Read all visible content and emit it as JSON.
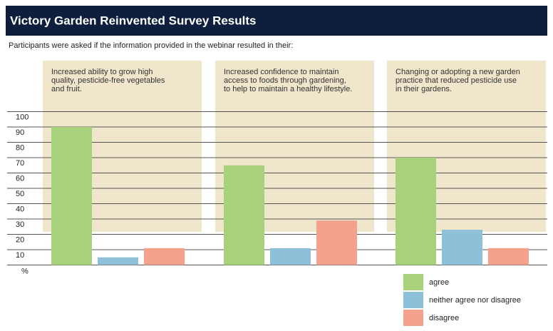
{
  "chart_data": {
    "type": "bar",
    "title": "Victory Garden Reinvented Survey Results",
    "subtitle": "Participants were asked if the information provided in the webinar resulted in their:",
    "categories": [
      "Increased ability to grow high\nquality, pesticide-free vegetables\nand fruit.",
      "Increased confidence to maintain\naccess to foods through gardening,\nto help to maintain a healthy lifestyle.",
      "Changing or adopting a new garden\npractice that reduced pesticide use\nin their gardens."
    ],
    "series": [
      {
        "name": "agree",
        "color": "#a8d17b",
        "values": [
          90,
          65,
          70
        ]
      },
      {
        "name": "neither agree nor disagree",
        "color": "#8ec1d9",
        "values": [
          5,
          11,
          23
        ]
      },
      {
        "name": "disagree",
        "color": "#f4a18d",
        "values": [
          11,
          29,
          11
        ]
      }
    ],
    "y_label": "%",
    "ylim": [
      0,
      100
    ],
    "yticks": [
      10,
      20,
      30,
      40,
      50,
      60,
      70,
      80,
      90,
      100
    ],
    "grid": true
  }
}
